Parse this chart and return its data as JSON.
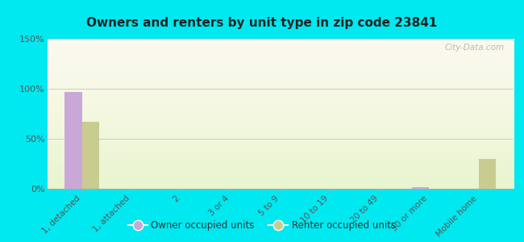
{
  "title": "Owners and renters by unit type in zip code 23841",
  "categories": [
    "1, detached",
    "1, attached",
    "2",
    "3 or 4",
    "5 to 9",
    "10 to 19",
    "20 to 49",
    "50 or more",
    "Mobile home"
  ],
  "owner_values": [
    97,
    0,
    0,
    0,
    0,
    0,
    0,
    2,
    0
  ],
  "renter_values": [
    67,
    0,
    0,
    0,
    0,
    0,
    0,
    0,
    30
  ],
  "owner_color": "#c9a8d8",
  "renter_color": "#c8cc90",
  "background_color": "#00e8f0",
  "ylim": [
    0,
    150
  ],
  "yticks": [
    0,
    50,
    100,
    150
  ],
  "ytick_labels": [
    "0%",
    "50%",
    "100%",
    "150%"
  ],
  "watermark": "City-Data.com",
  "bar_width": 0.35,
  "legend_owner": "Owner occupied units",
  "legend_renter": "Renter occupied units"
}
